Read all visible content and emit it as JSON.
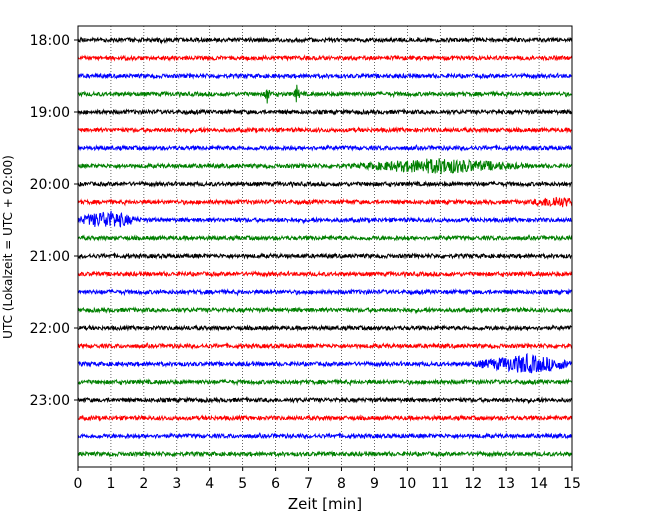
{
  "chart_data": {
    "type": "line",
    "title": "",
    "xlabel": "Zeit  [min]",
    "ylabel": "UTC (Lokalzeit = UTC + 02:00)",
    "xlim": [
      0,
      15
    ],
    "x_ticks": [
      "0",
      "1",
      "2",
      "3",
      "4",
      "5",
      "6",
      "7",
      "8",
      "9",
      "10",
      "11",
      "12",
      "13",
      "14",
      "15"
    ],
    "y_tick_labels": [
      "18:00",
      "19:00",
      "20:00",
      "21:00",
      "22:00",
      "23:00"
    ],
    "vertical_grid": true,
    "grid_style": "dotted",
    "trace_interval_min": 15,
    "trace_colors": [
      "#000000",
      "#ff0000",
      "#0000ff",
      "#008000"
    ],
    "traces": [
      {
        "start": "18:00",
        "color": "#000000",
        "events": []
      },
      {
        "start": "18:15",
        "color": "#ff0000",
        "events": []
      },
      {
        "start": "18:30",
        "color": "#0000ff",
        "events": []
      },
      {
        "start": "18:45",
        "color": "#008000",
        "events": [
          {
            "t": 5.75,
            "amp": 1.0
          },
          {
            "t": 6.65,
            "amp": 0.9
          }
        ]
      },
      {
        "start": "19:00",
        "color": "#000000",
        "events": []
      },
      {
        "start": "19:15",
        "color": "#ff0000",
        "events": []
      },
      {
        "start": "19:30",
        "color": "#0000ff",
        "events": []
      },
      {
        "start": "19:45",
        "color": "#008000",
        "events": [
          {
            "t": 11.0,
            "amp": 0.7,
            "dur": 3.5
          }
        ]
      },
      {
        "start": "20:00",
        "color": "#000000",
        "events": []
      },
      {
        "start": "20:15",
        "color": "#ff0000",
        "events": [
          {
            "t": 14.5,
            "amp": 0.5,
            "dur": 1.0
          }
        ]
      },
      {
        "start": "20:30",
        "color": "#0000ff",
        "events": [
          {
            "t": 0.9,
            "amp": 0.9,
            "dur": 1.3
          }
        ]
      },
      {
        "start": "20:45",
        "color": "#008000",
        "events": []
      },
      {
        "start": "21:00",
        "color": "#000000",
        "events": []
      },
      {
        "start": "21:15",
        "color": "#ff0000",
        "events": []
      },
      {
        "start": "21:30",
        "color": "#0000ff",
        "events": []
      },
      {
        "start": "21:45",
        "color": "#008000",
        "events": []
      },
      {
        "start": "22:00",
        "color": "#000000",
        "events": []
      },
      {
        "start": "22:15",
        "color": "#ff0000",
        "events": []
      },
      {
        "start": "22:30",
        "color": "#0000ff",
        "events": [
          {
            "t": 13.6,
            "amp": 0.9,
            "dur": 2.2
          }
        ]
      },
      {
        "start": "22:45",
        "color": "#008000",
        "events": []
      },
      {
        "start": "23:00",
        "color": "#000000",
        "events": []
      },
      {
        "start": "23:15",
        "color": "#ff0000",
        "events": []
      },
      {
        "start": "23:30",
        "color": "#0000ff",
        "events": []
      },
      {
        "start": "23:45",
        "color": "#008000",
        "events": []
      }
    ]
  }
}
